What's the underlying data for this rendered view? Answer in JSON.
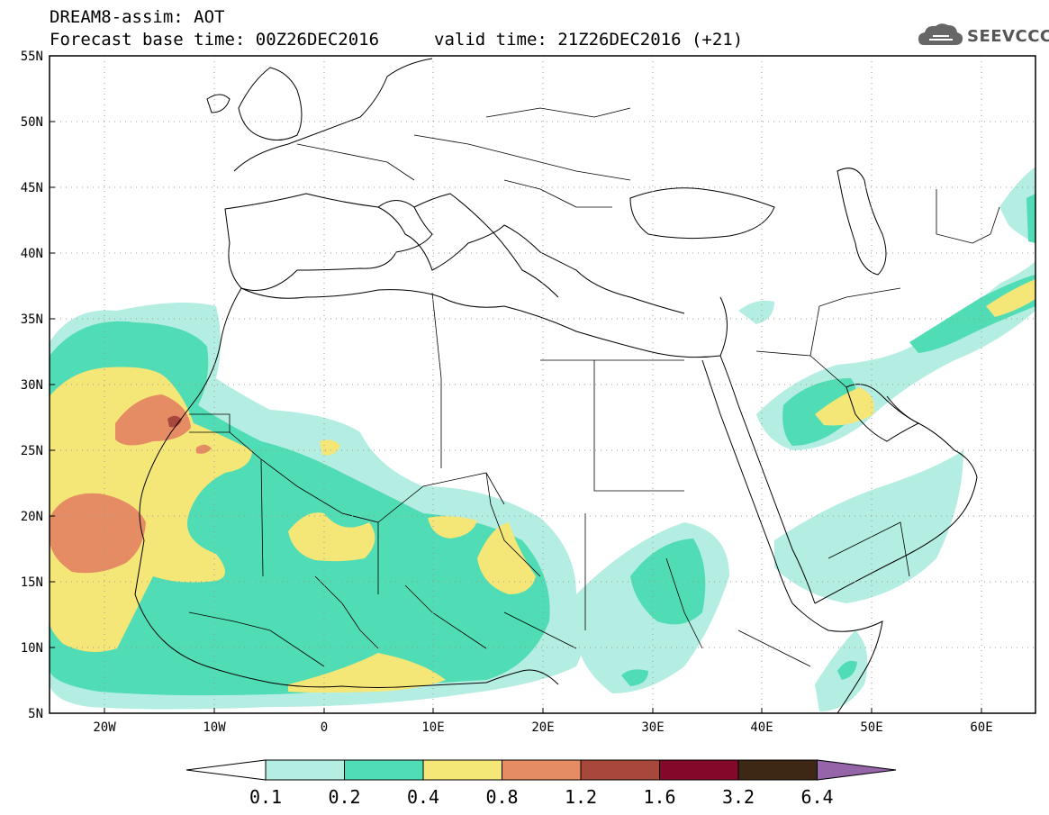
{
  "header": {
    "title_line1": "DREAM8-assim: AOT",
    "title_line2": "Forecast base time: 00Z26DEC2016",
    "valid_time": "valid time: 21Z26DEC2016 (+21)",
    "logo_text": "SEEVCCC",
    "logo_icon": "cloud-icon"
  },
  "axes": {
    "lat_labels": [
      "55N",
      "50N",
      "45N",
      "40N",
      "35N",
      "30N",
      "25N",
      "20N",
      "15N",
      "10N",
      "5N"
    ],
    "lon_labels": [
      "20W",
      "10W",
      "0",
      "10E",
      "20E",
      "30E",
      "40E",
      "50E",
      "60E"
    ]
  },
  "colorbar": {
    "labels": [
      "0.1",
      "0.2",
      "0.4",
      "0.8",
      "1.2",
      "1.6",
      "3.2",
      "6.4"
    ],
    "colors": [
      "#ffffff",
      "#b4ede2",
      "#50dcb4",
      "#f5e678",
      "#e68c64",
      "#a8483c",
      "#820a28",
      "#3c2814",
      "#9664a8"
    ]
  },
  "map": {
    "projection": "lat-lon",
    "lon_range": [
      -25,
      65
    ],
    "lat_range": [
      5,
      55
    ],
    "variable": "AOT",
    "ocean_color": "#ffffff",
    "coastline_color": "#000000"
  }
}
